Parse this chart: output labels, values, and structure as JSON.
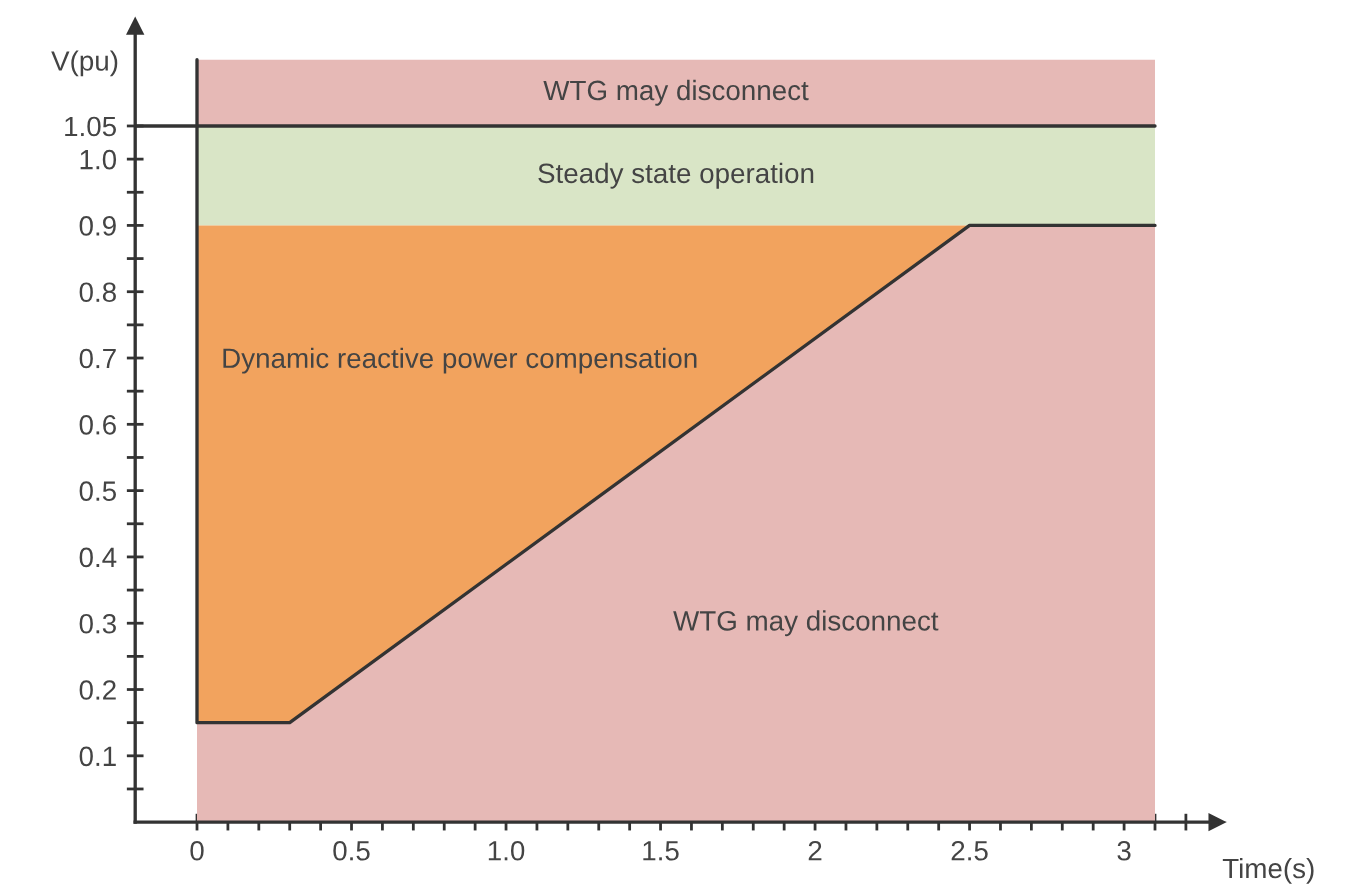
{
  "chart_data": {
    "type": "line",
    "xlabel": "Time(s)",
    "ylabel": "V(pu)",
    "xlim": [
      -0.2,
      3.3
    ],
    "ylim": [
      0,
      1.2
    ],
    "xticks": [
      0,
      {
        "value": 0.5,
        "label": "0.5"
      },
      {
        "value": 1.0,
        "label": "1.0"
      },
      {
        "value": 1.5,
        "label": "1.5"
      },
      2,
      {
        "value": 2.5,
        "label": "2.5"
      },
      3,
      {
        "value": 0.1,
        "label": null
      },
      {
        "value": 0.2,
        "label": null
      },
      {
        "value": 0.3,
        "label": null
      },
      {
        "value": 0.4,
        "label": null
      },
      {
        "value": 0.6,
        "label": null
      },
      {
        "value": 0.7,
        "label": null
      },
      {
        "value": 0.8,
        "label": null
      },
      {
        "value": 0.9,
        "label": null
      },
      {
        "value": 1.1,
        "label": null
      },
      {
        "value": 1.2,
        "label": null
      },
      {
        "value": 1.3,
        "label": null
      },
      {
        "value": 1.4,
        "label": null
      },
      {
        "value": 1.6,
        "label": null
      },
      {
        "value": 1.7,
        "label": null
      },
      {
        "value": 1.8,
        "label": null
      },
      {
        "value": 1.9,
        "label": null
      },
      {
        "value": 2.1,
        "label": null
      },
      {
        "value": 2.2,
        "label": null
      },
      {
        "value": 2.3,
        "label": null
      },
      {
        "value": 2.4,
        "label": null
      },
      {
        "value": 2.6,
        "label": null
      },
      {
        "value": 2.7,
        "label": null
      },
      {
        "value": 2.8,
        "label": null
      },
      {
        "value": 2.9,
        "label": null
      },
      {
        "value": 3.1,
        "label": null
      },
      {
        "value": 3.2,
        "label": null
      }
    ],
    "yticks": [
      {
        "value": 0.1,
        "label": "0.1"
      },
      {
        "value": 0.2,
        "label": "0.2"
      },
      {
        "value": 0.3,
        "label": "0.3"
      },
      {
        "value": 0.4,
        "label": "0.4"
      },
      {
        "value": 0.5,
        "label": "0.5"
      },
      {
        "value": 0.6,
        "label": "0.6"
      },
      {
        "value": 0.7,
        "label": "0.7"
      },
      {
        "value": 0.8,
        "label": "0.8"
      },
      {
        "value": 0.9,
        "label": "0.9"
      },
      {
        "value": 1.0,
        "label": "1.0"
      },
      {
        "value": 1.05,
        "label": "1.05"
      },
      {
        "value": 0.05,
        "label": null
      },
      {
        "value": 0.15,
        "label": null
      },
      {
        "value": 0.25,
        "label": null
      },
      {
        "value": 0.35,
        "label": null
      },
      {
        "value": 0.45,
        "label": null
      },
      {
        "value": 0.55,
        "label": null
      },
      {
        "value": 0.65,
        "label": null
      },
      {
        "value": 0.75,
        "label": null
      },
      {
        "value": 0.85,
        "label": null
      },
      {
        "value": 0.95,
        "label": null
      }
    ],
    "bands": [
      {
        "axis": "y",
        "from": 1.05,
        "to": 1.15,
        "label": "WTG may disconnect",
        "color": "#e6b9b6"
      },
      {
        "axis": "y",
        "from": 0.9,
        "to": 1.05,
        "label": "Steady state operation",
        "color": "#d9e5c6"
      }
    ],
    "ref_lines": [
      {
        "axis": "y",
        "value": 1.05,
        "color": "#333333"
      }
    ],
    "series": [
      {
        "type": "area",
        "color": "#f2a35e",
        "x": [
          0,
          2.5
        ],
        "values": [
          0.9,
          0.9
        ]
      },
      {
        "type": "area",
        "color": "#e6b9b6",
        "x": [
          0,
          0.3,
          2.5,
          3.1
        ],
        "values": [
          0.15,
          0.15,
          0.9,
          0.9
        ]
      },
      {
        "color": "#333333",
        "x": [
          0,
          0,
          0.3,
          2.5,
          3.1
        ],
        "values": [
          1.15,
          0.15,
          0.15,
          0.9,
          0.9
        ]
      }
    ],
    "annotations": [
      "Dynamic reactive power compensation",
      "WTG may disconnect"
    ],
    "grid": false,
    "legend": false
  }
}
